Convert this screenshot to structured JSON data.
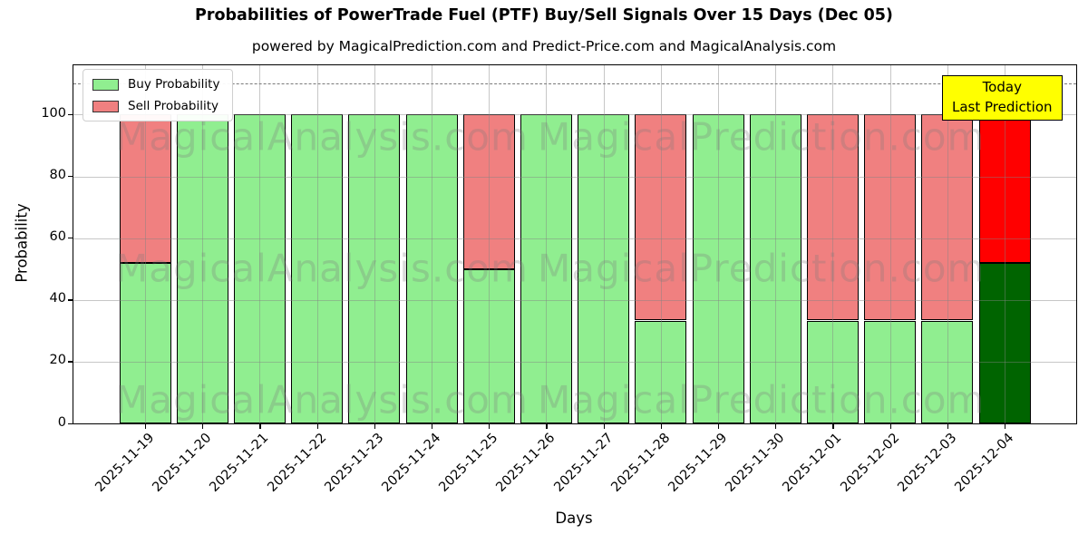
{
  "title": "Probabilities of PowerTrade Fuel (PTF) Buy/Sell Signals Over 15 Days (Dec 05)",
  "subtitle": "powered by MagicalPrediction.com and Predict-Price.com and MagicalAnalysis.com",
  "annotation": {
    "line1": "Today",
    "line2": "Last Prediction",
    "background": "#ffff00"
  },
  "watermarks": {
    "left": "MagicalAnalysis.com",
    "right": "MagicalPrediction.com"
  },
  "legend": [
    {
      "label": "Buy Probability",
      "color": "#90ee90"
    },
    {
      "label": "Sell Probability",
      "color": "#f08080"
    }
  ],
  "chart_data": {
    "type": "bar",
    "stacked": true,
    "title": "Probabilities of PowerTrade Fuel (PTF) Buy/Sell Signals Over 15 Days (Dec 05)",
    "xlabel": "Days",
    "ylabel": "Probability",
    "categories": [
      "2025-11-19",
      "2025-11-20",
      "2025-11-21",
      "2025-11-22",
      "2025-11-23",
      "2025-11-24",
      "2025-11-25",
      "2025-11-26",
      "2025-11-27",
      "2025-11-28",
      "2025-11-29",
      "2025-11-30",
      "2025-12-01",
      "2025-12-02",
      "2025-12-03",
      "2025-12-04"
    ],
    "series": [
      {
        "name": "Buy Probability",
        "color": "#90ee90",
        "values": [
          52,
          100,
          100,
          100,
          100,
          100,
          50,
          100,
          100,
          33.33,
          100,
          100,
          33.33,
          33.33,
          33.33,
          52
        ]
      },
      {
        "name": "Sell Probability",
        "color": "#f08080",
        "values": [
          48,
          0,
          0,
          0,
          0,
          0,
          50,
          0,
          0,
          66.67,
          0,
          0,
          66.67,
          66.67,
          66.67,
          48
        ]
      }
    ],
    "today_colors": {
      "buy": "#006400",
      "sell": "#ff0000"
    },
    "bar_edge_color": "#000000",
    "yticks": [
      0,
      20,
      40,
      60,
      80,
      100
    ],
    "ylim": [
      0,
      116
    ],
    "dashed_line_y": 110,
    "grid": true,
    "legend_position": "upper left"
  }
}
